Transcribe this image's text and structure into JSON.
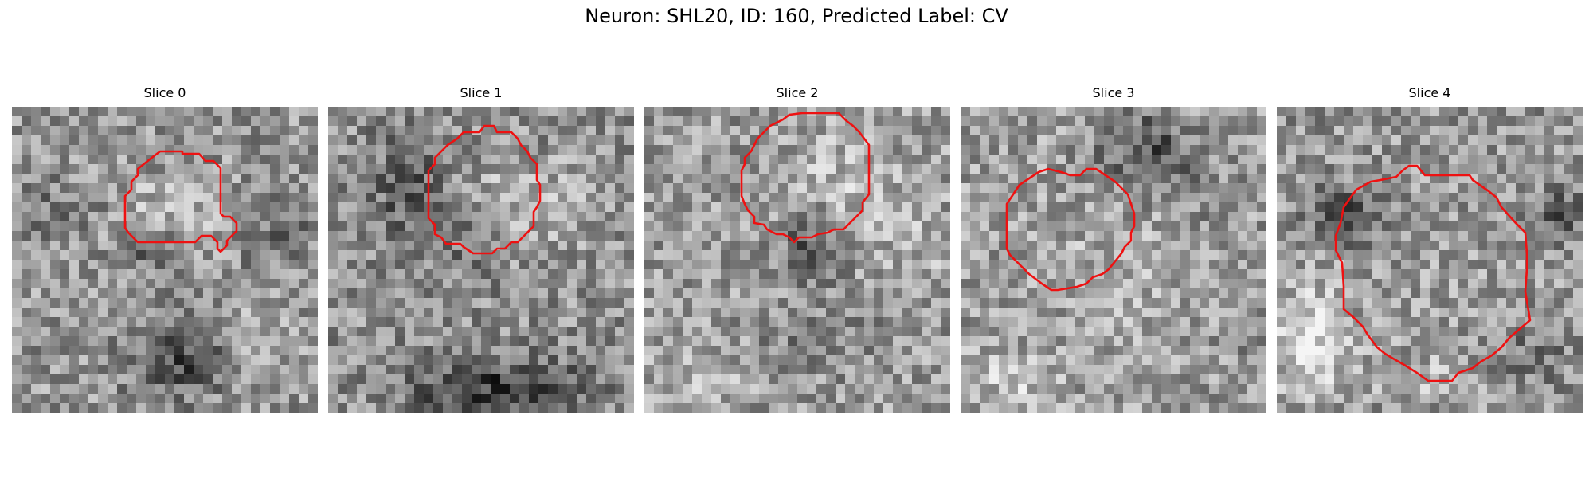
{
  "figure": {
    "title": "Neuron: SHL20, ID: 160, Predicted Label: CV"
  },
  "panels": [
    {
      "title": "Slice 0"
    },
    {
      "title": "Slice 1"
    },
    {
      "title": "Slice 2"
    },
    {
      "title": "Slice 3"
    },
    {
      "title": "Slice 4"
    }
  ],
  "colors": {
    "contour": "#ee1111",
    "colormap": "gray"
  }
}
